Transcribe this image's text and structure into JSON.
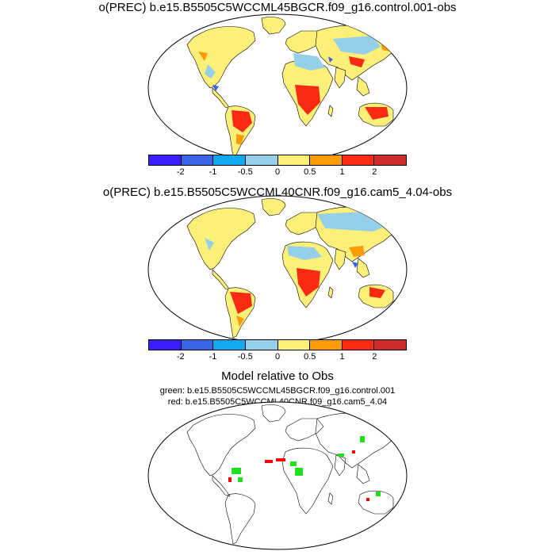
{
  "panel1": {
    "title": "o(PREC) b.e15.B5505C5WCCML45BGCR.f09_g16.control.001-obs"
  },
  "panel2": {
    "title": "o(PREC) b.e15.B5505C5WCCML40CNR.f09_g16.cam5_4.04-obs"
  },
  "panel3": {
    "title": "Model relative to Obs",
    "line_green": "green: b.e15.B5505C5WCCML45BGCR.f09_g16.control.001",
    "line_red": "red: b.e15.B5505C5WCCML40CNR.f09_g16.cam5_4.04"
  },
  "colorbar": {
    "colors": [
      "#3a1eff",
      "#3a64e6",
      "#12a8f0",
      "#96cfea",
      "#fdf078",
      "#fb9b06",
      "#fb2a12",
      "#cf2c2c"
    ],
    "tick_labels": [
      "-2",
      "-1",
      "-0.5",
      "0",
      "0.5",
      "1",
      "2"
    ]
  }
}
